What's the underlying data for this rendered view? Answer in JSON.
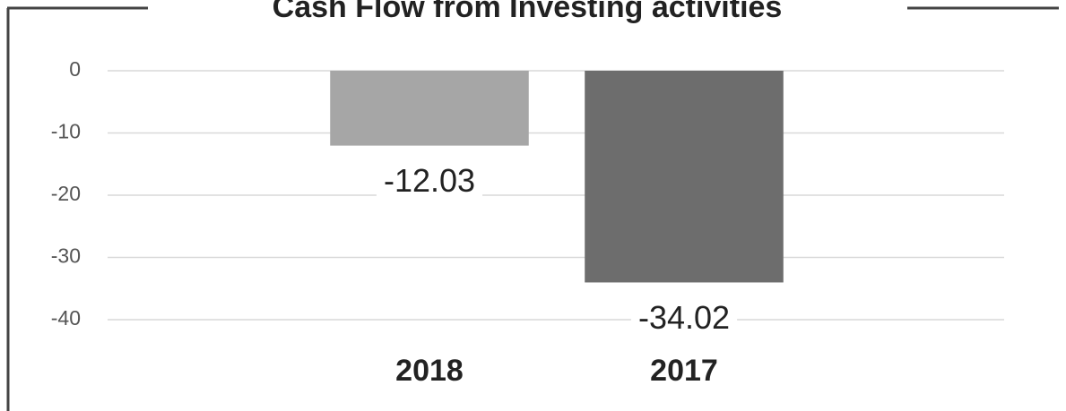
{
  "chart_data": {
    "type": "bar",
    "title": "Cash Flow from Investing activities",
    "categories": [
      "2018",
      "2017"
    ],
    "values": [
      -12.03,
      -34.02
    ],
    "colors": [
      "#a6a6a6",
      "#6d6d6d"
    ],
    "ylim": [
      -40,
      0
    ],
    "yticks": [
      0,
      -10,
      -20,
      -30,
      -40
    ],
    "grid": true
  }
}
